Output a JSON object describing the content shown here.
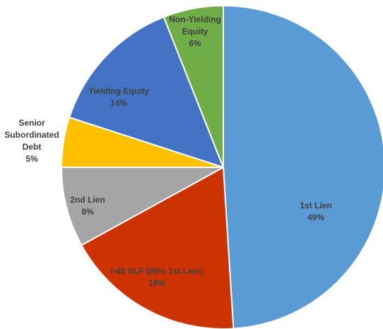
{
  "chart_data": {
    "type": "pie",
    "categories": [
      "1st Lien",
      "I-45 SLF (96% 1st Lien)",
      "2nd Lien",
      "Senior Subordinated Debt",
      "Yielding Equity",
      "Non-Yielding Equity"
    ],
    "values": [
      49,
      18,
      8,
      5,
      14,
      6
    ],
    "value_labels": [
      "49%",
      "18%",
      "8%",
      "5%",
      "14%",
      "6%"
    ],
    "colors": [
      "#5b9bd5",
      "#cc3300",
      "#a5a5a5",
      "#ffc000",
      "#4472c4",
      "#70ad47"
    ]
  }
}
